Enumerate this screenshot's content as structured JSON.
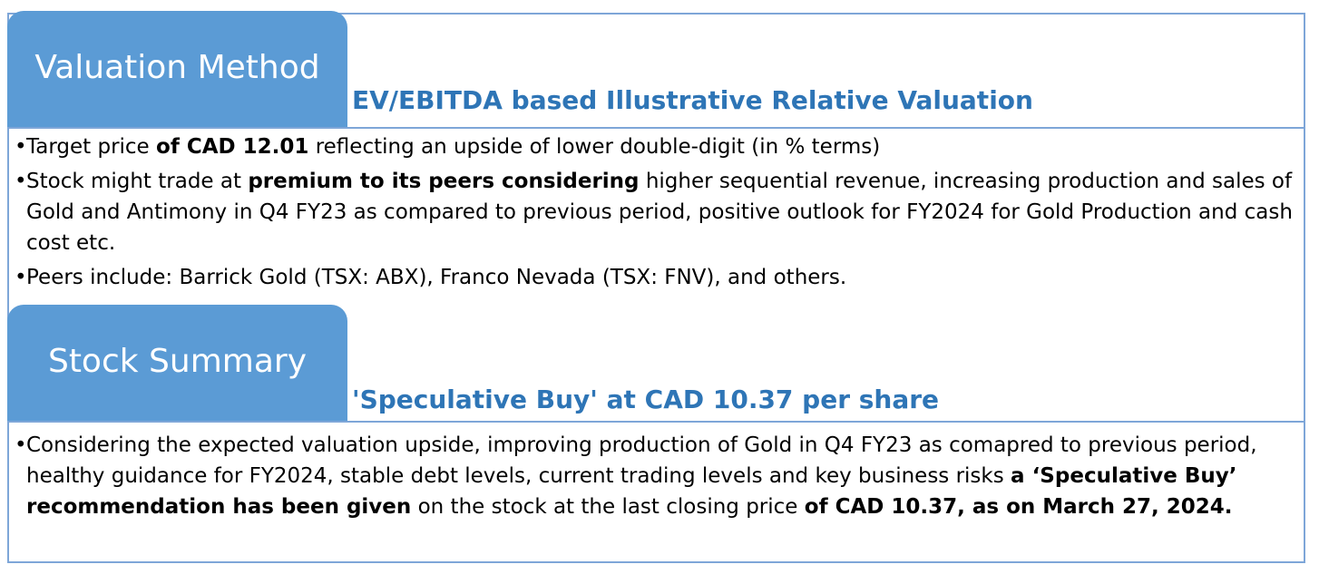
{
  "valuation": {
    "tab_label": "Valuation Method",
    "subtitle": "EV/EBITDA based Illustrative Relative Valuation",
    "bullets": [
      [
        {
          "text": "Target price ",
          "bold": false
        },
        {
          "text": "of CAD 12.01",
          "bold": true
        },
        {
          "text": " reflecting an upside of lower double-digit (in % terms)",
          "bold": false
        }
      ],
      [
        {
          "text": "Stock might trade at ",
          "bold": false
        },
        {
          "text": "premium to its peers considering",
          "bold": true
        },
        {
          "text": " higher sequential revenue, increasing production and sales of Gold and Antimony in Q4 FY23 as compared to previous period, positive outlook for FY2024 for Gold Production and cash cost etc.",
          "bold": false
        }
      ],
      [
        {
          "text": "Peers include:  Barrick Gold (TSX: ABX), Franco Nevada (TSX: FNV), and others.",
          "bold": false
        }
      ]
    ]
  },
  "summary": {
    "tab_label": "Stock Summary",
    "subtitle": "'Speculative Buy' at CAD 10.37 per share",
    "bullets": [
      [
        {
          "text": "Considering the expected valuation upside, improving production of Gold in Q4 FY23 as comapred to previous period, healthy guidance for FY2024, stable debt levels, current trading levels and key business risks ",
          "bold": false
        },
        {
          "text": "a ‘Speculative Buy’ recommendation has been given",
          "bold": true
        },
        {
          "text": " on the stock at the last closing price ",
          "bold": false
        },
        {
          "text": "of CAD 10.37, as on March 27, 2024.",
          "bold": true
        }
      ]
    ]
  },
  "bullet_glyph": "•"
}
